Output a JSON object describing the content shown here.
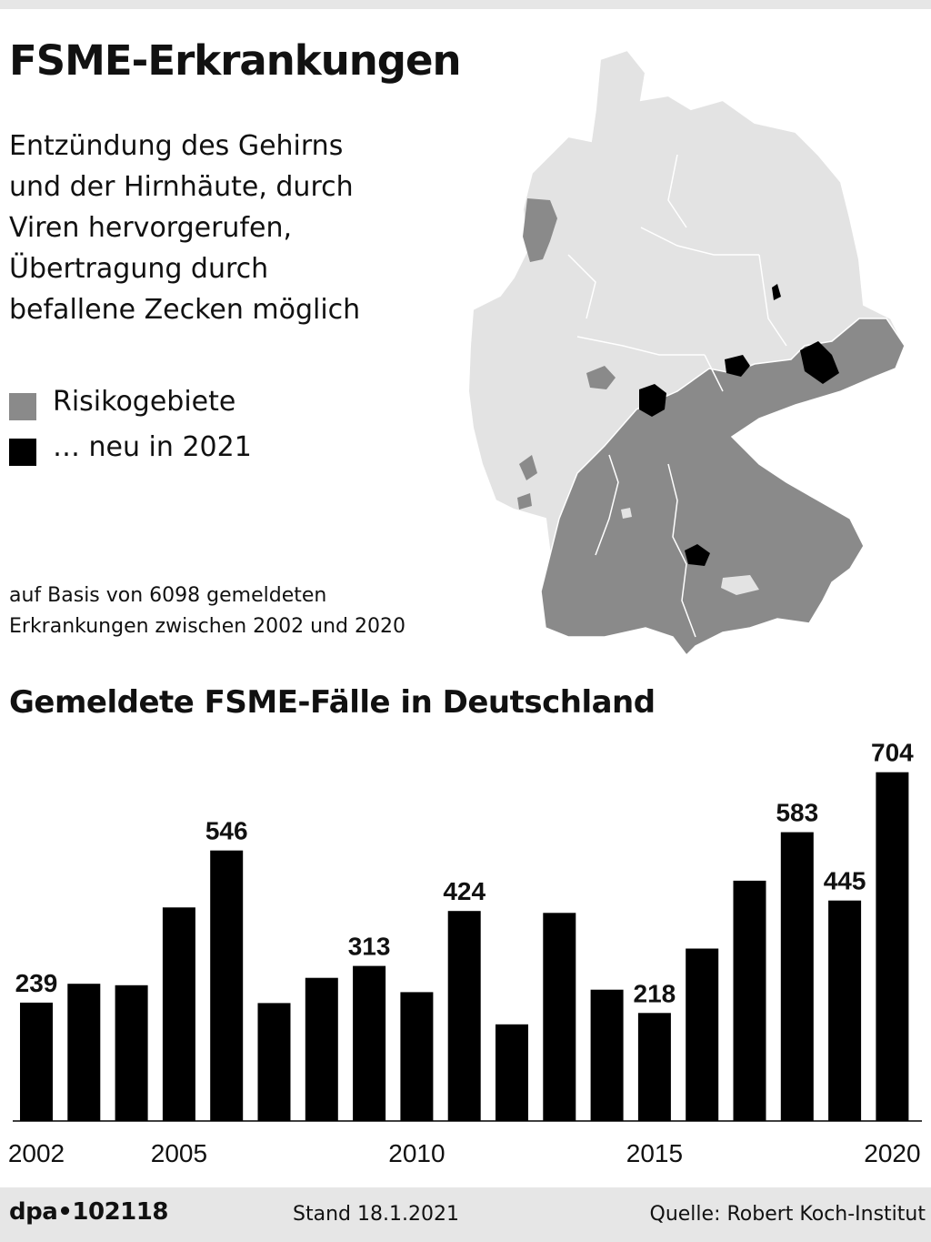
{
  "header": {
    "title": "FSME-Erkrankungen",
    "description_lines": [
      "Entzündung des Gehirns",
      "und der Hirnhäute, durch",
      "Viren hervorgerufen,",
      "Übertragung durch",
      "befallene Zecken möglich"
    ]
  },
  "legend": {
    "risk_label": "Risikogebiete",
    "new_label": "… neu in 2021",
    "risk_color": "#8a8a8a",
    "new_color": "#000000"
  },
  "basis": {
    "line1": "auf Basis von 6098 gemeldeten",
    "line2": "Erkrankungen zwischen 2002 und 2020"
  },
  "colors": {
    "map_base": "#e3e3e3",
    "map_risk": "#8a8a8a",
    "map_new": "#000000",
    "bar": "#000000",
    "footer_bg": "#e6e6e6"
  },
  "chart_data": {
    "type": "bar",
    "title": "Gemeldete FSME-Fälle in Deutschland",
    "categories": [
      "2002",
      "2003",
      "2004",
      "2005",
      "2006",
      "2007",
      "2008",
      "2009",
      "2010",
      "2011",
      "2012",
      "2013",
      "2014",
      "2015",
      "2016",
      "2017",
      "2018",
      "2019",
      "2020"
    ],
    "values": [
      239,
      277,
      274,
      431,
      546,
      238,
      289,
      313,
      260,
      424,
      195,
      420,
      265,
      218,
      348,
      485,
      583,
      445,
      704
    ],
    "labeled_years": [
      "2002",
      "2006",
      "2009",
      "2011",
      "2015",
      "2018",
      "2019",
      "2020"
    ],
    "x_tick_labels": [
      "2002",
      "2005",
      "2010",
      "2015",
      "2020"
    ],
    "xlabel": "",
    "ylabel": "",
    "ylim": [
      0,
      720
    ],
    "grid": false
  },
  "footer": {
    "logo": "dpa•102118",
    "stand": "Stand 18.1.2021",
    "source": "Quelle: Robert Koch-Institut"
  }
}
